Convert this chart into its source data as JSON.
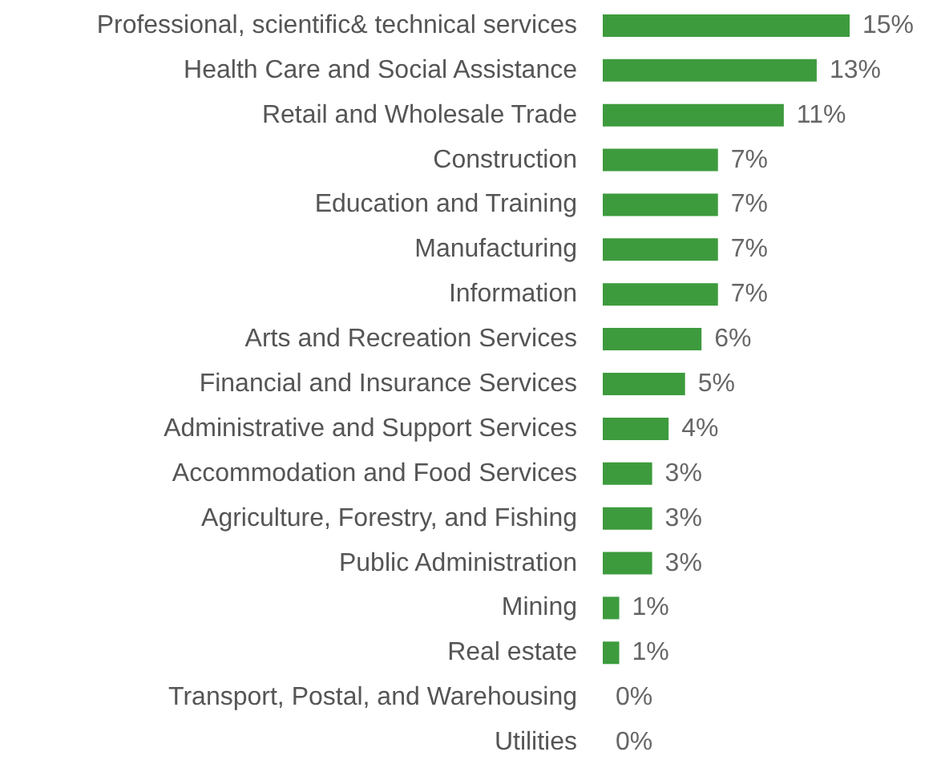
{
  "chart_data": {
    "type": "bar",
    "orientation": "horizontal",
    "color": "#3d9b3d",
    "categories": [
      "Professional, scientific& technical services",
      "Health Care and Social Assistance",
      "Retail and Wholesale Trade",
      "Construction",
      "Education and Training",
      "Manufacturing",
      "Information",
      "Arts and Recreation Services",
      "Financial and Insurance Services",
      "Administrative and Support Services",
      "Accommodation and Food Services",
      "Agriculture, Forestry, and Fishing",
      "Public Administration",
      "Mining",
      "Real estate",
      "Transport, Postal, and Warehousing",
      "Utilities"
    ],
    "values": [
      15,
      13,
      11,
      7,
      7,
      7,
      7,
      6,
      5,
      4,
      3,
      3,
      3,
      1,
      1,
      0,
      0
    ],
    "value_labels": [
      "15%",
      "13%",
      "11%",
      "7%",
      "7%",
      "7%",
      "7%",
      "6%",
      "5%",
      "4%",
      "3%",
      "3%",
      "3%",
      "1%",
      "1%",
      "0%",
      "0%"
    ]
  }
}
